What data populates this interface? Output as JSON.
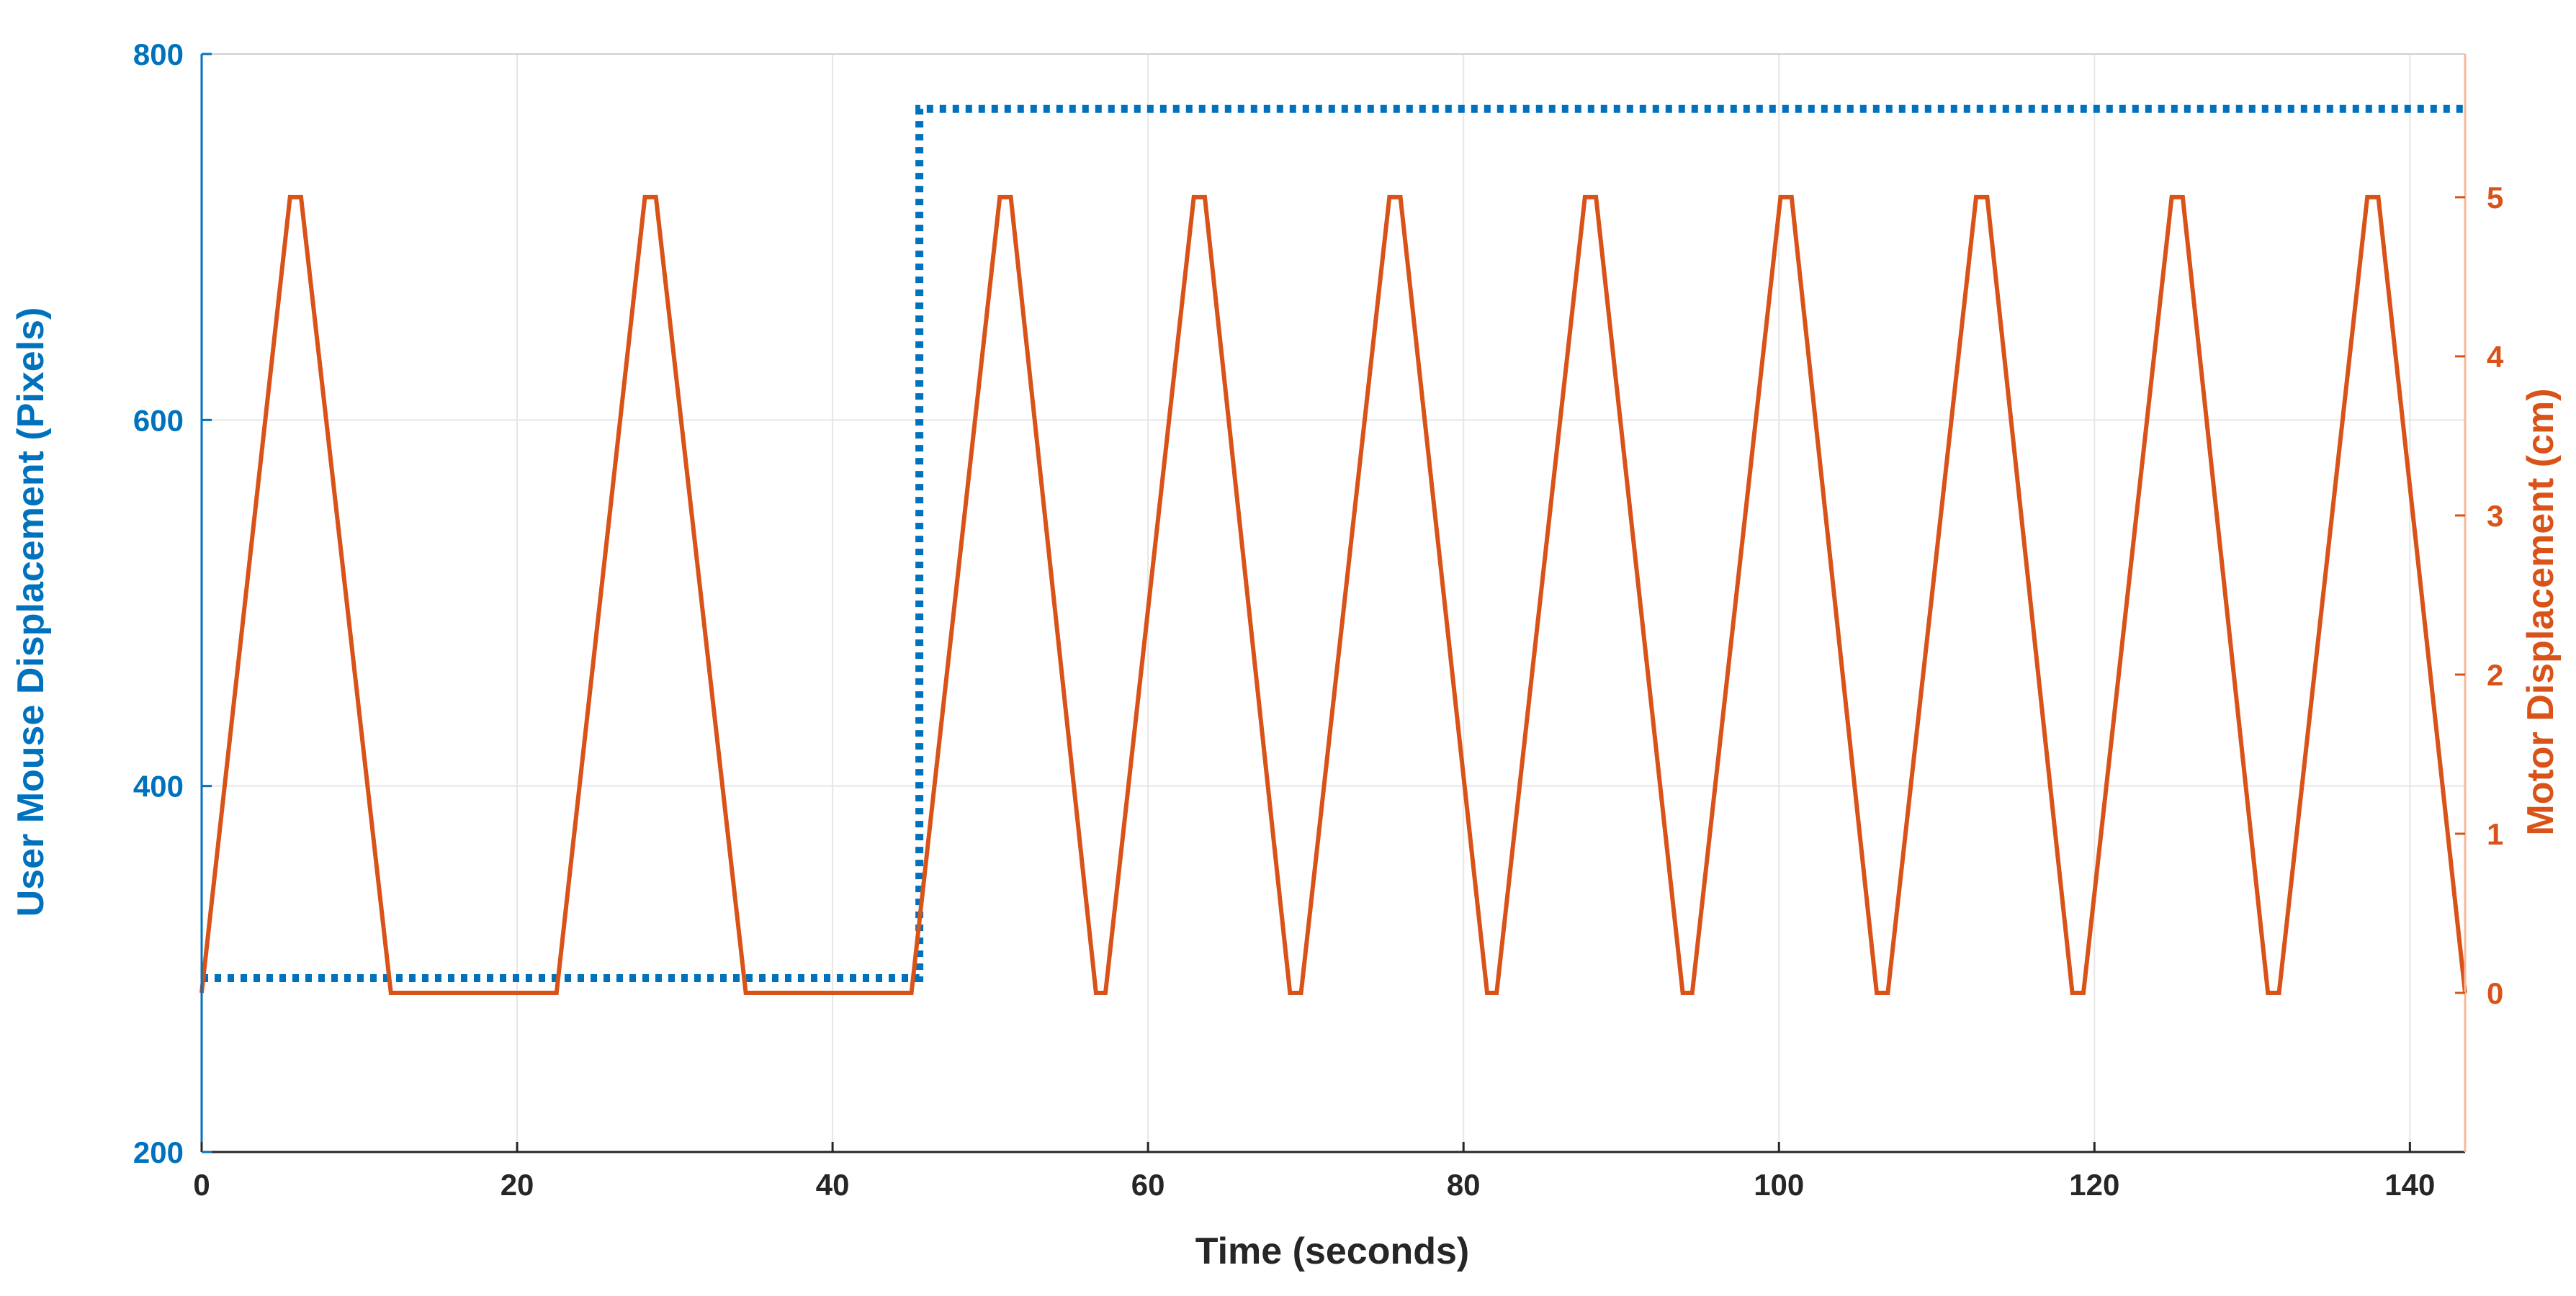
{
  "colors": {
    "left_axis": "#0072BD",
    "right_axis": "#D95319",
    "x_axis": "#262626",
    "grid": "#e6e6e6",
    "right_axis_line": "#f5b89c"
  },
  "chart_data": {
    "type": "line",
    "xlabel": "Time (seconds)",
    "ylabel_left": "User Mouse Displacement (Pixels)",
    "ylabel_right": "Motor Displacement (cm)",
    "xlim": [
      0,
      143.5
    ],
    "ylim_left": [
      200,
      800
    ],
    "ylim_right": [
      -1,
      5.9
    ],
    "x_ticks": [
      0,
      20,
      40,
      60,
      80,
      100,
      120,
      140
    ],
    "y_ticks_left": [
      200,
      400,
      600,
      800
    ],
    "y_ticks_right": [
      0,
      1,
      2,
      3,
      4,
      5
    ],
    "grid": true,
    "series": [
      {
        "name": "",
        "axis": "left",
        "style": "dotted",
        "color": "#0072BD",
        "x": [
          0,
          45.5,
          45.5,
          143.5
        ],
        "y": [
          295,
          295,
          770,
          770
        ]
      },
      {
        "name": "",
        "axis": "right",
        "style": "solid",
        "color": "#D95319",
        "x": [
          0,
          5.6,
          6.3,
          12,
          22.5,
          28.1,
          28.8,
          34.5,
          45,
          50.6,
          51.3,
          56.7,
          57.3,
          62.9,
          63.6,
          69,
          69.7,
          75.3,
          76,
          81.5,
          82.1,
          87.7,
          88.4,
          93.9,
          94.5,
          100.1,
          100.8,
          106.2,
          106.9,
          112.5,
          113.2,
          118.6,
          119.3,
          124.9,
          125.6,
          131,
          131.7,
          137.3,
          138,
          143.5
        ],
        "y": [
          0,
          5,
          5,
          0,
          0,
          5,
          5,
          0,
          0,
          5,
          5,
          0,
          0,
          5,
          5,
          0,
          0,
          5,
          5,
          0,
          0,
          5,
          5,
          0,
          0,
          5,
          5,
          0,
          0,
          5,
          5,
          0,
          0,
          5,
          5,
          0,
          0,
          5,
          5,
          0
        ]
      }
    ]
  }
}
